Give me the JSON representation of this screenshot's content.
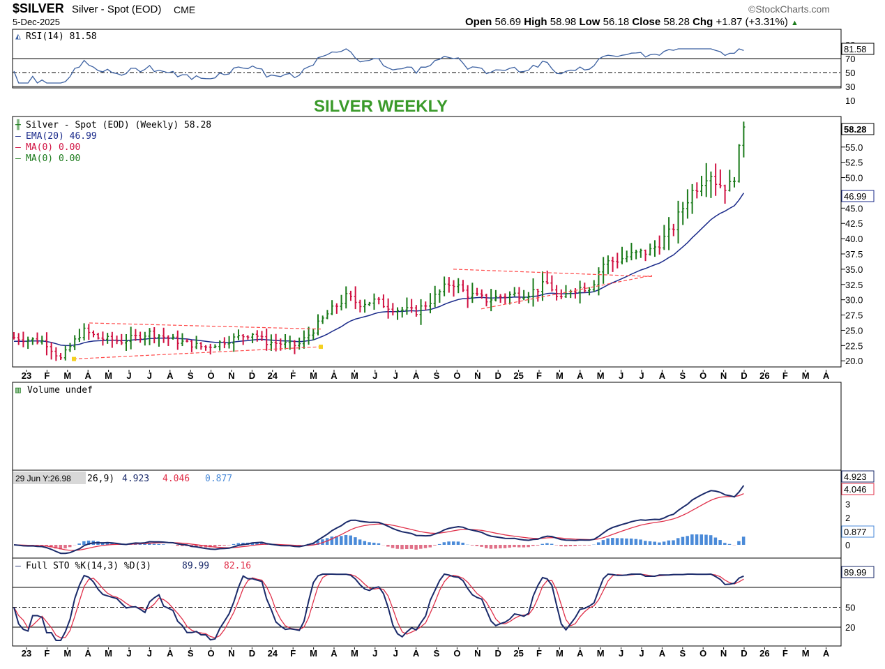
{
  "header": {
    "symbol": "$SILVER",
    "name": "Silver - Spot (EOD)",
    "exchange": "CME",
    "date": "5-Dec-2025",
    "brand": "©StockCharts.com",
    "open_label": "Open",
    "open": "56.69",
    "high_label": "High",
    "high": "58.98",
    "low_label": "Low",
    "low": "56.18",
    "close_label": "Close",
    "close": "58.28",
    "chg_label": "Chg",
    "chg": "+1.87 (+3.31%)",
    "chg_arrow": "▲",
    "overlay_title": "SILVER WEEKLY"
  },
  "colors": {
    "up": "#1a7a1a",
    "down": "#d01040",
    "ema": "#1a2a8a",
    "rsi": "#3a5fa0",
    "rsi_fill": "#4a8ad8",
    "macd": "#1a2a6a",
    "signal": "#e0304a",
    "hist_pos": "#4a8ad8",
    "hist_neg": "#e07088",
    "title_green": "#3a9a2a",
    "trend": "#ff4a4a"
  },
  "panels": {
    "rsi": {
      "legend": "RSI(14) 81.58",
      "ticks": [
        "90",
        "70",
        "50",
        "30",
        "10"
      ],
      "last_value": "81.58"
    },
    "price": {
      "legend_main": "Silver - Spot (EOD) (Weekly) 58.28",
      "legend_ema": "EMA(20) 46.99",
      "legend_ma1": "MA(0) 0.00",
      "legend_ma2": "MA(0) 0.00",
      "ticks": [
        "55.0",
        "52.5",
        "50.0",
        "47.5",
        "45.0",
        "42.5",
        "40.0",
        "37.5",
        "35.0",
        "32.5",
        "30.0",
        "27.5",
        "25.0",
        "22.5",
        "20.0"
      ],
      "last_value": "58.28",
      "ema_value": "46.99"
    },
    "volume": {
      "legend": "Volume undef"
    },
    "macd": {
      "tooltip": "29 Jun Y:26.98",
      "legend_prefix": "26,9)",
      "macd": "4.923",
      "signal": "4.046",
      "hist": "0.877",
      "ticks": [
        "3",
        "2",
        "1",
        "0"
      ]
    },
    "sto": {
      "legend_prefix": "Full STO %K(14,3) %D(3)",
      "k": "89.99",
      "d": "82.16",
      "ticks": [
        "50",
        "20"
      ]
    }
  },
  "x_axis": [
    "23",
    "F",
    "M",
    "A",
    "M",
    "J",
    "J",
    "A",
    "S",
    "O",
    "N",
    "D",
    "24",
    "F",
    "M",
    "A",
    "M",
    "J",
    "J",
    "A",
    "S",
    "O",
    "N",
    "D",
    "25",
    "F",
    "M",
    "A",
    "M",
    "J",
    "J",
    "A",
    "S",
    "O",
    "N",
    "D",
    "26",
    "F",
    "M",
    "A"
  ],
  "chart_data": {
    "type": "line",
    "title": "SILVER WEEKLY",
    "subtitle": "$SILVER Silver - Spot (EOD) CME",
    "xlabel": "",
    "ylabel": "",
    "x_range": [
      "Jan 2023",
      "Apr 2026"
    ],
    "ylim": [
      19,
      60
    ],
    "grid": false,
    "legend": "top-left",
    "series": [
      {
        "name": "Silver - Spot (EOD) (Weekly)",
        "kind": "ohlc-close",
        "x": [
          "2023-01",
          "2023-02",
          "2023-03",
          "2023-04",
          "2023-05",
          "2023-06",
          "2023-07",
          "2023-08",
          "2023-09",
          "2023-10",
          "2023-11",
          "2023-12",
          "2024-01",
          "2024-02",
          "2024-03",
          "2024-04",
          "2024-05",
          "2024-06",
          "2024-07",
          "2024-08",
          "2024-09",
          "2024-10",
          "2024-11",
          "2024-12",
          "2025-01",
          "2025-02",
          "2025-03",
          "2025-04",
          "2025-05",
          "2025-06",
          "2025-07",
          "2025-08",
          "2025-09",
          "2025-10",
          "2025-10b",
          "2025-11",
          "2025-11b",
          "2025-12"
        ],
        "values": [
          24.0,
          23.0,
          20.3,
          25.0,
          23.6,
          23.0,
          24.8,
          23.3,
          23.3,
          22.4,
          22.8,
          24.6,
          23.1,
          22.6,
          22.8,
          26.5,
          31.5,
          29.5,
          29.0,
          28.0,
          29.4,
          32.5,
          31.5,
          30.0,
          30.0,
          31.0,
          32.5,
          30.5,
          32.3,
          35.5,
          37.5,
          38.2,
          40.5,
          46.5,
          51.3,
          48.5,
          51.0,
          58.28
        ]
      },
      {
        "name": "EMA(20)",
        "x": [
          "2023-01",
          "2023-04",
          "2023-07",
          "2023-10",
          "2024-01",
          "2024-03",
          "2024-05",
          "2024-07",
          "2024-09",
          "2024-11",
          "2025-01",
          "2025-03",
          "2025-05",
          "2025-07",
          "2025-09",
          "2025-10",
          "2025-11",
          "2025-12"
        ],
        "values": [
          23.2,
          22.0,
          23.2,
          22.8,
          23.0,
          22.7,
          25.5,
          28.5,
          29.5,
          30.5,
          29.8,
          31.0,
          31.8,
          34.5,
          37.5,
          41.0,
          44.0,
          46.99
        ]
      }
    ],
    "rsi14": {
      "last": 81.58,
      "levels": [
        70,
        50,
        30
      ]
    },
    "macd_12_26_9": {
      "macd": 4.923,
      "signal": 4.046,
      "histogram": 0.877
    },
    "full_sto_14_3_3": {
      "k": 89.99,
      "d": 82.16,
      "levels": [
        80,
        50,
        20
      ]
    }
  }
}
